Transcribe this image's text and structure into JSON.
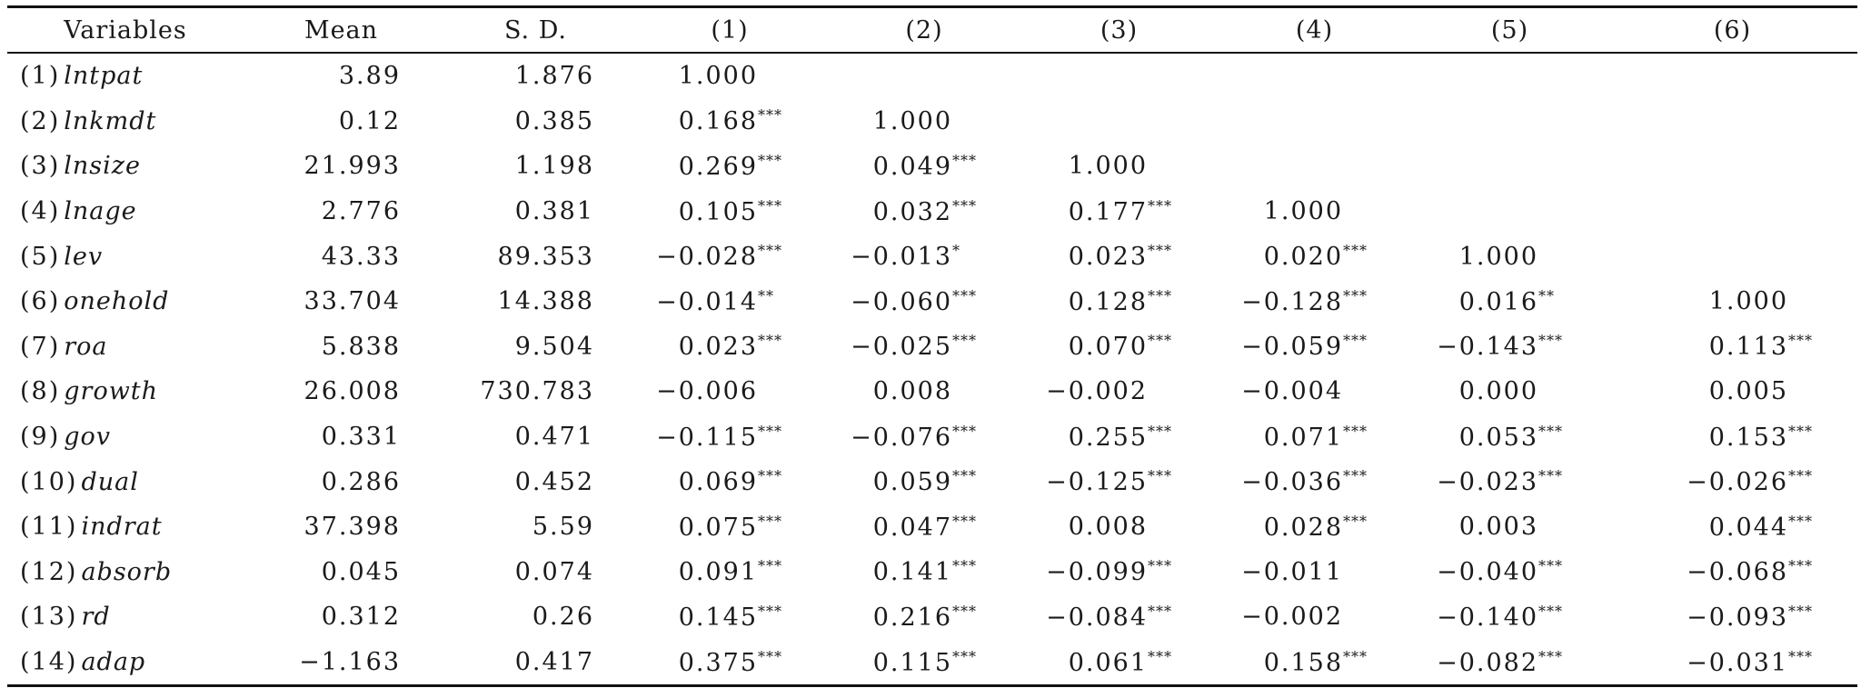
{
  "table": {
    "headers": [
      "Variables",
      "Mean",
      "S. D.",
      "(1)",
      "(2)",
      "(3)",
      "(4)",
      "(5)",
      "(6)"
    ],
    "rows": [
      {
        "num": "(1)",
        "name": "lntpat",
        "mean": "3.89",
        "sd": "1.876",
        "cells": [
          [
            "1.000",
            ""
          ],
          [
            "",
            ""
          ],
          [
            "",
            ""
          ],
          [
            "",
            ""
          ],
          [
            "",
            ""
          ],
          [
            "",
            ""
          ]
        ]
      },
      {
        "num": "(2)",
        "name": "lnkmdt",
        "mean": "0.12",
        "sd": "0.385",
        "cells": [
          [
            "0.168",
            "***"
          ],
          [
            "1.000",
            ""
          ],
          [
            "",
            ""
          ],
          [
            "",
            ""
          ],
          [
            "",
            ""
          ],
          [
            "",
            ""
          ]
        ]
      },
      {
        "num": "(3)",
        "name": "lnsize",
        "mean": "21.993",
        "sd": "1.198",
        "cells": [
          [
            "0.269",
            "***"
          ],
          [
            "0.049",
            "***"
          ],
          [
            "1.000",
            ""
          ],
          [
            "",
            ""
          ],
          [
            "",
            ""
          ],
          [
            "",
            ""
          ]
        ]
      },
      {
        "num": "(4)",
        "name": "lnage",
        "mean": "2.776",
        "sd": "0.381",
        "cells": [
          [
            "0.105",
            "***"
          ],
          [
            "0.032",
            "***"
          ],
          [
            "0.177",
            "***"
          ],
          [
            "1.000",
            ""
          ],
          [
            "",
            ""
          ],
          [
            "",
            ""
          ]
        ]
      },
      {
        "num": "(5)",
        "name": "lev",
        "mean": "43.33",
        "sd": "89.353",
        "cells": [
          [
            "−0.028",
            "***"
          ],
          [
            "−0.013",
            "*"
          ],
          [
            "0.023",
            "***"
          ],
          [
            "0.020",
            "***"
          ],
          [
            "1.000",
            ""
          ],
          [
            "",
            ""
          ]
        ]
      },
      {
        "num": "(6)",
        "name": "onehold",
        "mean": "33.704",
        "sd": "14.388",
        "cells": [
          [
            "−0.014",
            "**"
          ],
          [
            "−0.060",
            "***"
          ],
          [
            "0.128",
            "***"
          ],
          [
            "−0.128",
            "***"
          ],
          [
            "0.016",
            "**"
          ],
          [
            "1.000",
            ""
          ]
        ]
      },
      {
        "num": "(7)",
        "name": "roa",
        "mean": "5.838",
        "sd": "9.504",
        "cells": [
          [
            "0.023",
            "***"
          ],
          [
            "−0.025",
            "***"
          ],
          [
            "0.070",
            "***"
          ],
          [
            "−0.059",
            "***"
          ],
          [
            "−0.143",
            "***"
          ],
          [
            "0.113",
            "***"
          ]
        ]
      },
      {
        "num": "(8)",
        "name": "growth",
        "mean": "26.008",
        "sd": "730.783",
        "cells": [
          [
            "−0.006",
            ""
          ],
          [
            "0.008",
            ""
          ],
          [
            "−0.002",
            ""
          ],
          [
            "−0.004",
            ""
          ],
          [
            "0.000",
            ""
          ],
          [
            "0.005",
            ""
          ]
        ]
      },
      {
        "num": "(9)",
        "name": "gov",
        "mean": "0.331",
        "sd": "0.471",
        "cells": [
          [
            "−0.115",
            "***"
          ],
          [
            "−0.076",
            "***"
          ],
          [
            "0.255",
            "***"
          ],
          [
            "0.071",
            "***"
          ],
          [
            "0.053",
            "***"
          ],
          [
            "0.153",
            "***"
          ]
        ]
      },
      {
        "num": "(10)",
        "name": "dual",
        "mean": "0.286",
        "sd": "0.452",
        "cells": [
          [
            "0.069",
            "***"
          ],
          [
            "0.059",
            "***"
          ],
          [
            "−0.125",
            "***"
          ],
          [
            "−0.036",
            "***"
          ],
          [
            "−0.023",
            "***"
          ],
          [
            "−0.026",
            "***"
          ]
        ]
      },
      {
        "num": "(11)",
        "name": "indrat",
        "mean": "37.398",
        "sd": "5.59",
        "cells": [
          [
            "0.075",
            "***"
          ],
          [
            "0.047",
            "***"
          ],
          [
            "0.008",
            ""
          ],
          [
            "0.028",
            "***"
          ],
          [
            "0.003",
            ""
          ],
          [
            "0.044",
            "***"
          ]
        ]
      },
      {
        "num": "(12)",
        "name": "absorb",
        "mean": "0.045",
        "sd": "0.074",
        "cells": [
          [
            "0.091",
            "***"
          ],
          [
            "0.141",
            "***"
          ],
          [
            "−0.099",
            "***"
          ],
          [
            "−0.011",
            ""
          ],
          [
            "−0.040",
            "***"
          ],
          [
            "−0.068",
            "***"
          ]
        ]
      },
      {
        "num": "(13)",
        "name": "rd",
        "mean": "0.312",
        "sd": "0.26",
        "cells": [
          [
            "0.145",
            "***"
          ],
          [
            "0.216",
            "***"
          ],
          [
            "−0.084",
            "***"
          ],
          [
            "−0.002",
            ""
          ],
          [
            "−0.140",
            "***"
          ],
          [
            "−0.093",
            "***"
          ]
        ]
      },
      {
        "num": "(14)",
        "name": "adap",
        "mean": "−1.163",
        "sd": "0.417",
        "cells": [
          [
            "0.375",
            "***"
          ],
          [
            "0.115",
            "***"
          ],
          [
            "0.061",
            "***"
          ],
          [
            "0.158",
            "***"
          ],
          [
            "−0.082",
            "***"
          ],
          [
            "−0.031",
            "***"
          ]
        ]
      }
    ]
  }
}
